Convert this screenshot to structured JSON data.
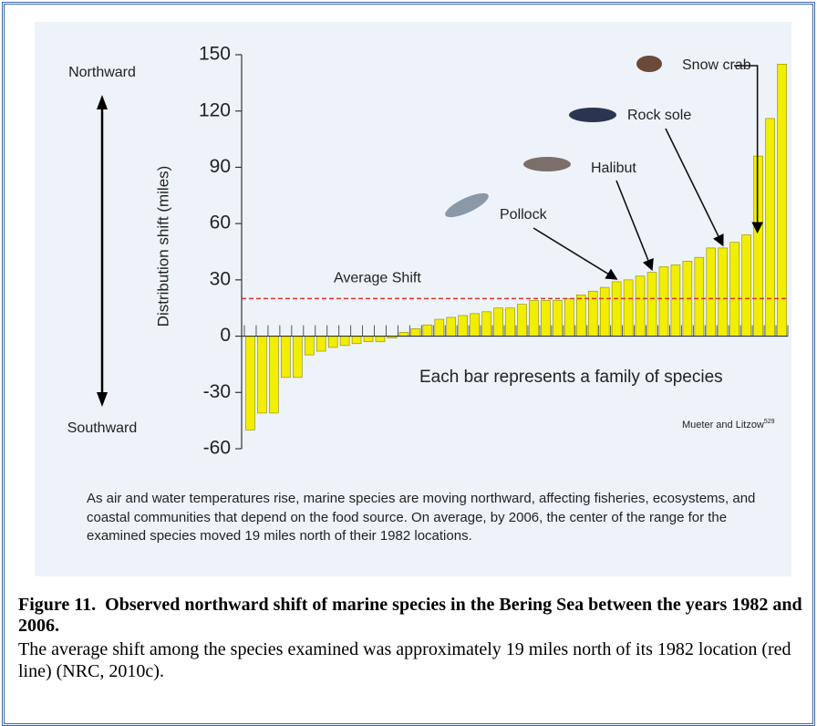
{
  "chart_data": {
    "type": "bar",
    "y_label": "Distribution shift (miles)",
    "values": [
      -50,
      -41,
      -41,
      -22,
      -22,
      -10,
      -8,
      -6,
      -5,
      -4,
      -3,
      -3,
      -1,
      2,
      4,
      6,
      9,
      10,
      11,
      12,
      13,
      15,
      15,
      17,
      19,
      19,
      19,
      20,
      22,
      24,
      26,
      29,
      30,
      32,
      34,
      37,
      38,
      40,
      42,
      47,
      47,
      50,
      54,
      96,
      116,
      145
    ],
    "color": "#f2ee00",
    "ylim": [
      -60,
      150
    ],
    "yticks": [
      -60,
      -30,
      0,
      30,
      60,
      90,
      120,
      150
    ],
    "average_line": {
      "label": "Average Shift",
      "value": 20,
      "color": "#e0302a"
    },
    "direction_labels": [
      "Northward",
      "Southward"
    ],
    "annotations": [
      {
        "text": "Pollock"
      },
      {
        "text": "Halibut"
      },
      {
        "text": "Rock sole"
      },
      {
        "text": "Snow crab"
      }
    ],
    "note": "Each bar represents a family of species",
    "source": {
      "text": "Mueter and Litzow",
      "ref": "529"
    },
    "description": "As air and water temperatures rise, marine species are moving northward, affecting fisheries, ecosystems, and coastal communities that depend on the food source. On average, by 2006, the center of the range for the examined species moved 19 miles north of their 1982 locations."
  },
  "caption": {
    "title": "Figure 11.  Observed northward shift of marine species in the Bering Sea between the years 1982 and 2006.",
    "text": "The average shift among the species examined was approximately 19 miles north of its 1982 location (red line) (NRC, 2010c)."
  }
}
